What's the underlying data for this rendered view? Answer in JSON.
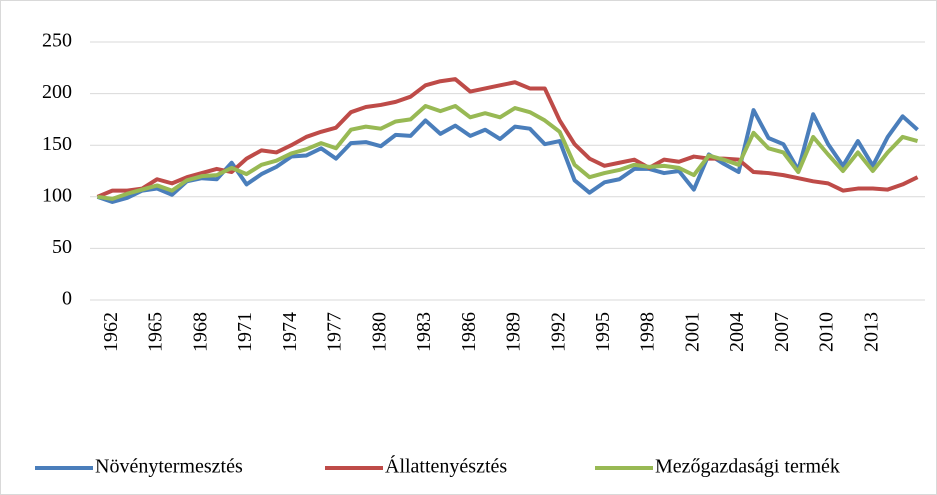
{
  "chart_data": {
    "type": "line",
    "categories": [
      null,
      "1962",
      null,
      null,
      "1965",
      null,
      null,
      "1968",
      null,
      null,
      "1971",
      null,
      null,
      "1974",
      null,
      null,
      "1977",
      null,
      null,
      "1980",
      null,
      null,
      "1983",
      null,
      null,
      "1986",
      null,
      null,
      "1989",
      null,
      null,
      "1992",
      null,
      null,
      "1995",
      null,
      null,
      "1998",
      null,
      null,
      "2001",
      null,
      null,
      "2004",
      null,
      null,
      "2007",
      null,
      null,
      "2010",
      null,
      null,
      "2013",
      null,
      null,
      null
    ],
    "series": [
      {
        "name": "Növénytermesztés",
        "color": "#4a7ebb",
        "values": [
          100,
          95,
          99,
          106,
          108,
          102,
          115,
          118,
          117,
          133,
          112,
          122,
          129,
          139,
          140,
          147,
          137,
          152,
          153,
          149,
          160,
          159,
          174,
          161,
          169,
          159,
          165,
          156,
          168,
          166,
          151,
          154,
          116,
          104,
          114,
          117,
          127,
          127,
          123,
          125,
          107,
          141,
          132,
          124,
          184,
          157,
          151,
          126,
          180,
          151,
          130,
          154,
          130,
          158,
          178,
          165
        ]
      },
      {
        "name": "Állattenyésztés",
        "color": "#be4b48",
        "values": [
          100,
          106,
          106,
          108,
          117,
          113,
          119,
          123,
          127,
          124,
          137,
          145,
          143,
          150,
          158,
          163,
          167,
          182,
          187,
          189,
          192,
          197,
          208,
          212,
          214,
          202,
          205,
          208,
          211,
          205,
          205,
          174,
          151,
          137,
          130,
          133,
          136,
          128,
          136,
          134,
          139,
          137,
          137,
          136,
          124,
          123,
          121,
          118,
          115,
          113,
          106,
          108,
          108,
          107,
          112,
          119
        ]
      },
      {
        "name": "Mezőgazdasági termék",
        "color": "#98b954",
        "values": [
          100,
          98,
          103,
          107,
          111,
          106,
          116,
          120,
          121,
          128,
          122,
          131,
          135,
          142,
          146,
          152,
          147,
          165,
          168,
          166,
          173,
          175,
          188,
          183,
          188,
          177,
          181,
          177,
          186,
          182,
          174,
          163,
          131,
          119,
          123,
          126,
          131,
          129,
          130,
          128,
          121,
          140,
          136,
          131,
          162,
          147,
          143,
          124,
          158,
          141,
          125,
          143,
          125,
          143,
          158,
          154
        ]
      }
    ],
    "ylim": [
      0,
      250
    ],
    "yticks": [
      0,
      50,
      100,
      150,
      200,
      250
    ],
    "grid": true,
    "legend": "bottom"
  }
}
